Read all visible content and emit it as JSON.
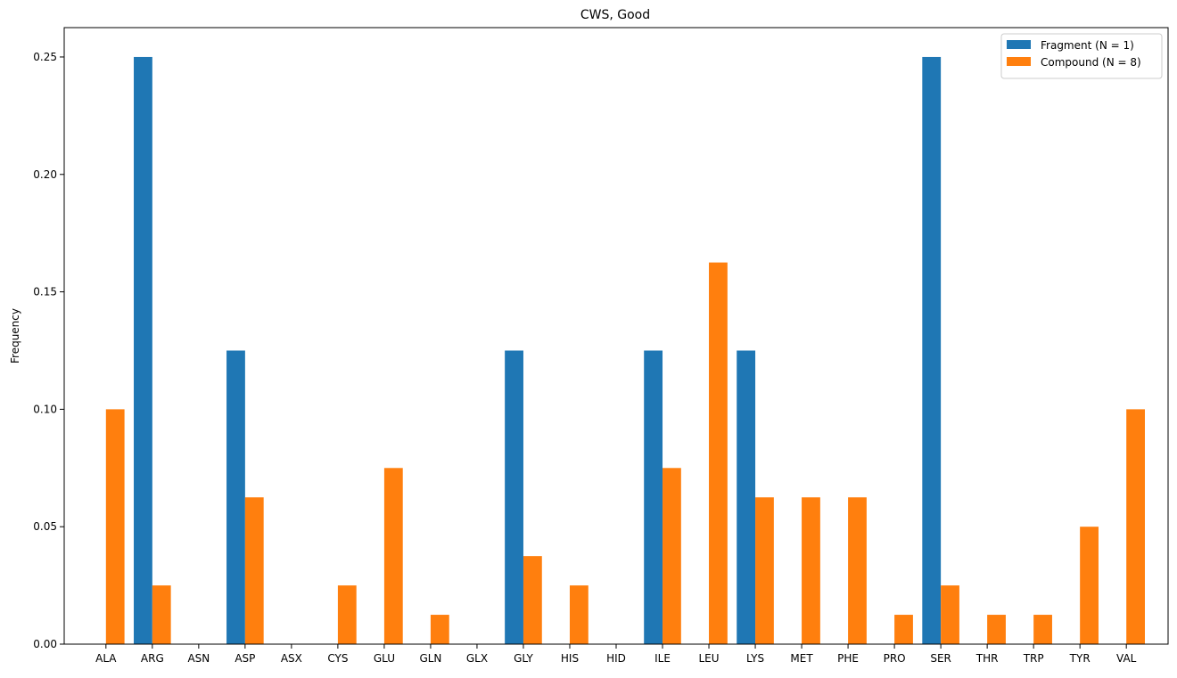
{
  "chart_data": {
    "type": "bar",
    "title": "CWS, Good",
    "xlabel": "",
    "ylabel": "Frequency",
    "ylim": [
      0,
      0.2625
    ],
    "yticks": [
      0.0,
      0.05,
      0.1,
      0.15,
      0.2,
      0.25
    ],
    "ytick_labels": [
      "0.00",
      "0.05",
      "0.10",
      "0.15",
      "0.20",
      "0.25"
    ],
    "grid": false,
    "legend_position": "top-right",
    "categories": [
      "ALA",
      "ARG",
      "ASN",
      "ASP",
      "ASX",
      "CYS",
      "GLU",
      "GLN",
      "GLX",
      "GLY",
      "HIS",
      "HID",
      "ILE",
      "LEU",
      "LYS",
      "MET",
      "PHE",
      "PRO",
      "SER",
      "THR",
      "TRP",
      "TYR",
      "VAL"
    ],
    "series": [
      {
        "name": "Fragment (N = 1)",
        "color": "#1f77b4",
        "values": [
          0,
          0.25,
          0,
          0.125,
          0,
          0,
          0,
          0,
          0,
          0.125,
          0,
          0,
          0.125,
          0,
          0.125,
          0,
          0,
          0,
          0.25,
          0,
          0,
          0,
          0
        ]
      },
      {
        "name": "Compound (N = 8)",
        "color": "#ff7f0e",
        "values": [
          0.1,
          0.025,
          0,
          0.0625,
          0,
          0.025,
          0.075,
          0.0125,
          0,
          0.0375,
          0.025,
          0,
          0.075,
          0.1625,
          0.0625,
          0.0625,
          0.0625,
          0.0125,
          0.025,
          0.0125,
          0.0125,
          0.05,
          0.1
        ]
      }
    ]
  }
}
